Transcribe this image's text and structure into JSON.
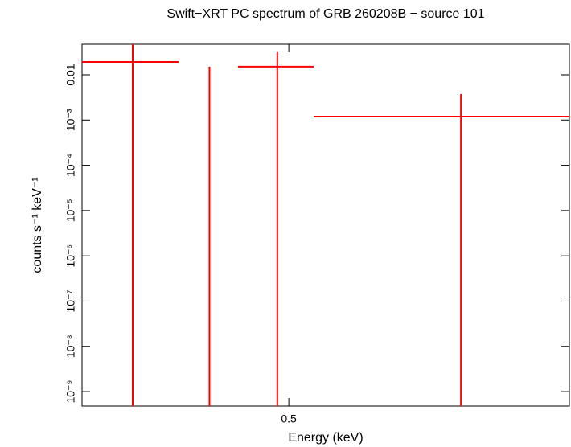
{
  "chart_data": {
    "type": "errorbar",
    "title": "Swift−XRT PC spectrum of GRB 260208B − source 101",
    "x_label": "Energy (keV)",
    "y_label": "counts s⁻¹ keV⁻¹",
    "x_log": true,
    "y_log": true,
    "xlim": [
      0.3,
      1.0
    ],
    "ylim": [
      4.8e-10,
      0.0473
    ],
    "xticks": [
      0.5
    ],
    "yticks": [
      {
        "value": 0.01,
        "label": "0.01"
      },
      {
        "value": 0.001,
        "label": "10⁻³"
      },
      {
        "value": 0.0001,
        "label": "10⁻⁴"
      },
      {
        "value": 1e-05,
        "label": "10⁻⁵"
      },
      {
        "value": 1e-06,
        "label": "10⁻⁶"
      },
      {
        "value": 1e-07,
        "label": "10⁻⁷"
      },
      {
        "value": 1e-08,
        "label": "10⁻⁸"
      },
      {
        "value": 1e-09,
        "label": "10⁻⁹"
      }
    ],
    "series": [
      {
        "color": "#ff0000",
        "x": [
          0.34,
          0.411,
          0.486,
          0.765
        ],
        "x_low": [
          0.3,
          0.381,
          0.441,
          0.532
        ],
        "x_high": [
          0.381,
          0.441,
          0.532,
          1.0
        ],
        "values": [
          0.0192,
          0,
          0.0151,
          0.00119
        ],
        "yerr_minus": [
          0.0192,
          0,
          0.0151,
          0.00119
        ],
        "yerr_plus": [
          0.03,
          0.0151,
          0.0163,
          0.00256
        ]
      }
    ]
  }
}
